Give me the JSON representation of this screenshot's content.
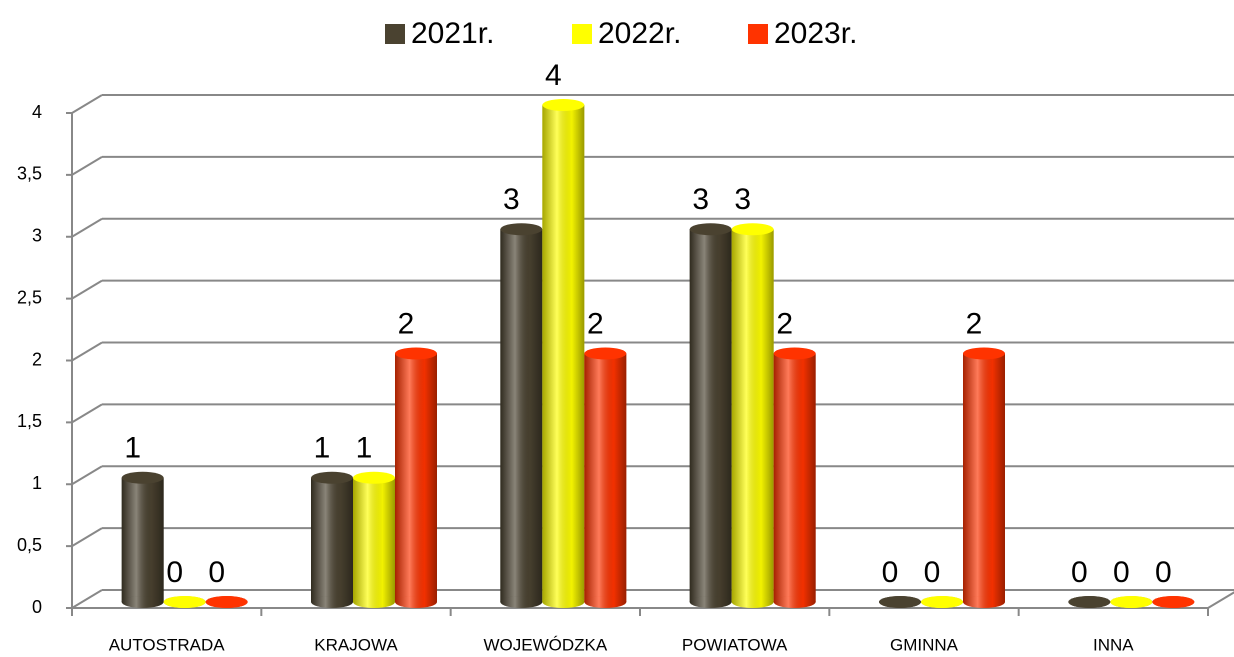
{
  "chart_data": {
    "type": "bar3d",
    "categories": [
      "AUTOSTRADA",
      "KRAJOWA",
      "WOJEWÓDZKA",
      "POWIATOWA",
      "GMINNA",
      "INNA"
    ],
    "series": [
      {
        "name": "2021r.",
        "color": "#4a4230",
        "values": [
          1,
          1,
          3,
          3,
          0,
          0
        ]
      },
      {
        "name": "2022r.",
        "color": "#ffff00",
        "values": [
          0,
          1,
          4,
          3,
          0,
          0
        ]
      },
      {
        "name": "2023r.",
        "color": "#ff3300",
        "values": [
          0,
          2,
          2,
          2,
          2,
          0
        ]
      }
    ],
    "ylim": [
      0,
      4
    ],
    "yticks": [
      0,
      {
        "value": 0.5,
        "label": "0,5"
      },
      1,
      {
        "value": 1.5,
        "label": "1,5"
      },
      2,
      {
        "value": 2.5,
        "label": "2,5"
      },
      3,
      {
        "value": 3.5,
        "label": "3,5"
      },
      4
    ],
    "grid": true,
    "legend": "top"
  }
}
